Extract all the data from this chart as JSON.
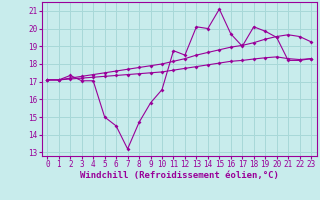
{
  "xlabel": "Windchill (Refroidissement éolien,°C)",
  "xlim": [
    -0.5,
    23.5
  ],
  "ylim": [
    12.8,
    21.5
  ],
  "yticks": [
    13,
    14,
    15,
    16,
    17,
    18,
    19,
    20,
    21
  ],
  "xticks": [
    0,
    1,
    2,
    3,
    4,
    5,
    6,
    7,
    8,
    9,
    10,
    11,
    12,
    13,
    14,
    15,
    16,
    17,
    18,
    19,
    20,
    21,
    22,
    23
  ],
  "bg_color": "#c8ecec",
  "grid_color": "#a8d8d8",
  "line_color": "#990099",
  "line1_y": [
    17.1,
    17.1,
    17.35,
    17.05,
    17.05,
    15.0,
    14.5,
    13.2,
    14.7,
    15.8,
    16.55,
    18.75,
    18.5,
    20.1,
    20.0,
    21.1,
    19.7,
    19.0,
    20.1,
    19.85,
    19.5,
    18.2,
    18.2,
    18.3
  ],
  "line2_y": [
    17.1,
    17.1,
    17.2,
    17.3,
    17.4,
    17.5,
    17.6,
    17.7,
    17.8,
    17.9,
    18.0,
    18.15,
    18.3,
    18.5,
    18.65,
    18.8,
    18.95,
    19.05,
    19.2,
    19.4,
    19.55,
    19.65,
    19.55,
    19.25
  ],
  "line3_y": [
    17.1,
    17.1,
    17.15,
    17.2,
    17.25,
    17.3,
    17.35,
    17.4,
    17.45,
    17.5,
    17.55,
    17.65,
    17.75,
    17.85,
    17.95,
    18.05,
    18.15,
    18.2,
    18.28,
    18.35,
    18.4,
    18.3,
    18.25,
    18.3
  ],
  "tick_fontsize": 5.5,
  "xlabel_fontsize": 6.5
}
